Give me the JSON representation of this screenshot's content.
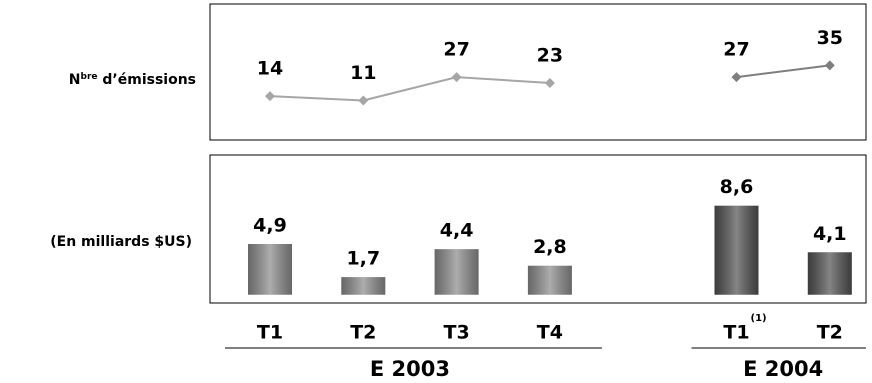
{
  "chart_data": [
    {
      "type": "line",
      "ylabel": [
        "N",
        "bre",
        " d’émissions"
      ],
      "ylim": [
        -16,
        77
      ],
      "series": [
        {
          "color": "#a6a6a6",
          "values": [
            14,
            11,
            27,
            23,
            null,
            null,
            null
          ]
        },
        {
          "color": "#7f7f7f",
          "values": [
            null,
            null,
            null,
            null,
            null,
            27,
            35
          ]
        }
      ]
    },
    {
      "type": "bar",
      "ylabel": "(En milliards $US)",
      "ylim": [
        -0.8,
        13.5
      ],
      "categories": [
        "T1",
        "T2",
        "T3",
        "T4",
        null,
        "T1",
        "T2"
      ],
      "category_notes": [
        null,
        null,
        null,
        null,
        null,
        "(1)",
        null
      ],
      "series": [
        {
          "name": "E 2003",
          "color": "#8a8a8a",
          "values": [
            4.9,
            1.7,
            4.4,
            2.8,
            null,
            null,
            null
          ],
          "value_labels": [
            "4,9",
            "1,7",
            "4,4",
            "2,8",
            null,
            null,
            null
          ]
        },
        {
          "name": "E 2004",
          "color": "#505050",
          "values": [
            null,
            null,
            null,
            null,
            null,
            8.6,
            4.1
          ],
          "value_labels": [
            null,
            null,
            null,
            null,
            null,
            "8,6",
            "4,1"
          ]
        }
      ]
    }
  ]
}
